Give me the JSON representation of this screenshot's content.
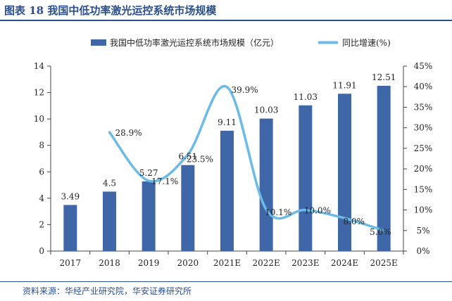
{
  "header": {
    "title": "图表 18 我国中低功率激光运控系统市场规模"
  },
  "footer": {
    "source": "资料来源：华经产业研究院，华安证券研究所"
  },
  "chart_data": {
    "type": "bar",
    "categories": [
      "2017",
      "2018",
      "2019",
      "2020",
      "2021E",
      "2022E",
      "2023E",
      "2024E",
      "2025E"
    ],
    "series": [
      {
        "name": "我国中低功率激光运控系统市场规模（亿元）",
        "type": "bar",
        "axis": "left",
        "color": "#3f67a8",
        "values": [
          3.49,
          4.5,
          5.27,
          6.51,
          9.11,
          10.03,
          11.03,
          11.91,
          12.51
        ],
        "labels": [
          "3.49",
          "4.5",
          "5.27",
          "6.51",
          "9.11",
          "10.03",
          "11.03",
          "11.91",
          "12.51"
        ]
      },
      {
        "name": "同比增速(%)",
        "type": "line",
        "axis": "right",
        "color": "#6bbbe8",
        "values": [
          null,
          28.9,
          17.1,
          23.5,
          39.9,
          10.1,
          10.0,
          8.0,
          5.0
        ],
        "labels": [
          "",
          "28.9%",
          "17.1%",
          "23.5%",
          "39.9%",
          "10.1%",
          "10.0%",
          "8.0%",
          "5.0%"
        ]
      }
    ],
    "y_left": {
      "min": 0,
      "max": 14,
      "ticks": [
        "0",
        "2",
        "4",
        "6",
        "8",
        "10",
        "12",
        "14"
      ]
    },
    "y_right": {
      "min": 0,
      "max": 45,
      "ticks": [
        "0%",
        "5%",
        "10%",
        "15%",
        "20%",
        "25%",
        "30%",
        "35%",
        "40%",
        "45%"
      ]
    },
    "grid": false,
    "legend": "top-center"
  }
}
